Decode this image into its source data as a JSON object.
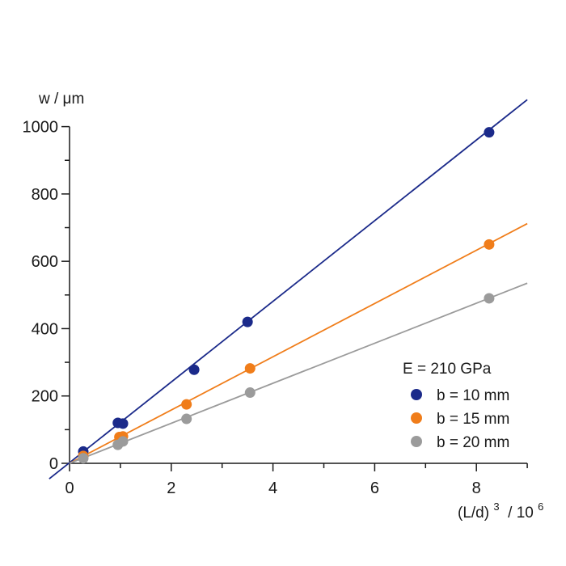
{
  "chart_data": {
    "type": "scatter",
    "title": "",
    "ylabel": "w / μm",
    "xlabel_base": "(L/d)",
    "xlabel_exp": "3",
    "xlabel_suffix": " / 10",
    "xlabel_suffix_exp": "6",
    "xlim": [
      0,
      9
    ],
    "ylim": [
      0,
      1000
    ],
    "xticks": [
      0,
      2,
      4,
      6,
      8
    ],
    "xminor_ticks": [
      1,
      3,
      5,
      7,
      9
    ],
    "yticks": [
      0,
      200,
      400,
      600,
      800,
      1000
    ],
    "yminor_ticks": [
      100,
      300,
      500,
      700,
      900
    ],
    "grid": false,
    "legend_position": "bottom-right",
    "legend_title": "E = 210 GPa",
    "series": [
      {
        "name": "b = 10 mm",
        "color": "#1b2a8a",
        "x": [
          0.27,
          0.95,
          1.05,
          2.45,
          3.5,
          8.25
        ],
        "y": [
          35,
          120,
          118,
          278,
          420,
          983
        ],
        "fit": {
          "x0": -0.4,
          "y0": -46,
          "x1": 9.0,
          "y1": 1080
        }
      },
      {
        "name": "b = 15 mm",
        "color": "#f07d1a",
        "x": [
          0.27,
          0.98,
          1.05,
          2.3,
          3.55,
          8.25
        ],
        "y": [
          22,
          78,
          80,
          175,
          282,
          650
        ],
        "fit": {
          "x0": 0.0,
          "y0": 0,
          "x1": 9.0,
          "y1": 712
        }
      },
      {
        "name": "b = 20 mm",
        "color": "#9b9b9b",
        "x": [
          0.27,
          0.95,
          1.05,
          2.3,
          3.55,
          8.25
        ],
        "y": [
          15,
          55,
          65,
          132,
          210,
          490
        ],
        "fit": {
          "x0": 0.0,
          "y0": 0,
          "x1": 9.0,
          "y1": 535
        }
      }
    ]
  }
}
